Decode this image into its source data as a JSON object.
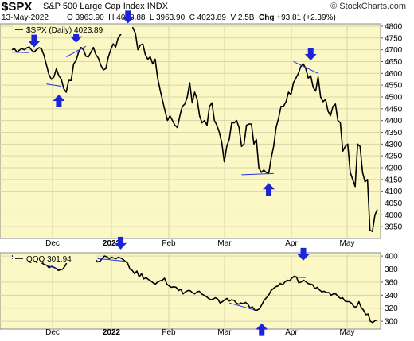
{
  "header": {
    "symbol": "$SPX",
    "name": "S&P 500 Large Cap Index",
    "exchange": "INDX",
    "brand": "© StockCharts.com",
    "date": "13-May-2022",
    "open_label": "O",
    "open": "3963.90",
    "high_label": "H",
    "high": "4038.88",
    "low_label": "L",
    "low": "3963.90",
    "close_label": "C",
    "close": "4023.89",
    "volume_label": "V",
    "volume": "2.5B",
    "change_label": "Chg",
    "change": "+93.81 (+2.39%)"
  },
  "colors": {
    "plot_bg": "#fbf8c6",
    "grid": "#d8d6a8",
    "line": "#000000",
    "arrow": "#1d24d8",
    "trend": "#2233dd"
  },
  "chart_data": [
    {
      "type": "line",
      "legend": "$SPX (Daily) 4023.89",
      "x_ticks": [
        "Dec",
        "2022",
        "Feb",
        "Mar",
        "Apr",
        "May"
      ],
      "ylim": [
        3900,
        4810
      ],
      "y_ticks": [
        3950,
        4000,
        4050,
        4100,
        4150,
        4200,
        4250,
        4300,
        4350,
        4400,
        4450,
        4500,
        4550,
        4600,
        4650,
        4700,
        4750,
        4800
      ],
      "y_tick_labels": [
        "3950",
        "4000",
        "4050",
        "4100",
        "4150",
        "4200",
        "4250",
        "4300",
        "4350",
        "4400",
        "4450",
        "4500",
        "4550",
        "4600",
        "4650",
        "4700",
        "4750",
        "4800"
      ],
      "grid": true,
      "values": [
        4700,
        4705,
        4690,
        4698,
        4705,
        4700,
        4708,
        4712,
        4698,
        4690,
        4701,
        4709,
        4704,
        4676,
        4635,
        4595,
        4575,
        4585,
        4620,
        4590,
        4575,
        4535,
        4520,
        4570,
        4570,
        4640,
        4655,
        4690,
        4710,
        4700,
        4672,
        4670,
        4690,
        4710,
        4680,
        4665,
        4635,
        4615,
        4620,
        4668,
        4700,
        4725,
        4712,
        4750,
        4765,
        4778,
        4790,
        4780,
        4796,
        4793,
        4770,
        4700,
        4720,
        4725,
        4680,
        4660,
        4670,
        4640,
        4660,
        4580,
        4530,
        4485,
        4440,
        4400,
        4420,
        4400,
        4380,
        4370,
        4420,
        4460,
        4470,
        4500,
        4560,
        4475,
        4520,
        4490,
        4420,
        4390,
        4400,
        4380,
        4460,
        4475,
        4400,
        4380,
        4350,
        4305,
        4225,
        4290,
        4320,
        4390,
        4390,
        4400,
        4370,
        4290,
        4300,
        4380,
        4385,
        4385,
        4300,
        4320,
        4200,
        4180,
        4190,
        4180,
        4175,
        4240,
        4290,
        4370,
        4410,
        4460,
        4460,
        4480,
        4520,
        4510,
        4560,
        4580,
        4600,
        4630,
        4640,
        4620,
        4580,
        4590,
        4540,
        4525,
        4585,
        4500,
        4480,
        4490,
        4440,
        4420,
        4460,
        4470,
        4400,
        4390,
        4270,
        4290,
        4300,
        4180,
        4150,
        4120,
        4300,
        4290,
        4180,
        4140,
        4150,
        3935,
        3930,
        3999,
        4023
      ],
      "annotations": [
        {
          "kind": "arrow-down",
          "i": 9,
          "v": 4710
        },
        {
          "kind": "arrow-up",
          "i": 19,
          "v": 4510
        },
        {
          "kind": "arrow-down",
          "i": 26,
          "v": 4730
        },
        {
          "kind": "arrow-down",
          "i": 47,
          "v": 4812
        },
        {
          "kind": "arrow-down",
          "i": 121,
          "v": 4655
        },
        {
          "kind": "arrow-up",
          "i": 104,
          "v": 4135
        }
      ],
      "trendlines": [
        {
          "i0": 0,
          "v0": 4690,
          "i1": 7,
          "v1": 4688
        },
        {
          "i0": 14,
          "v0": 4555,
          "i1": 20,
          "v1": 4545
        },
        {
          "i0": 22,
          "v0": 4670,
          "i1": 30,
          "v1": 4715
        },
        {
          "i0": 37,
          "v0": 4770,
          "i1": 48,
          "v1": 4788
        },
        {
          "i0": 93,
          "v0": 4170,
          "i1": 106,
          "v1": 4175
        },
        {
          "i0": 114,
          "v0": 4650,
          "i1": 124,
          "v1": 4600
        }
      ]
    },
    {
      "type": "line",
      "legend": "QQQ 301.94",
      "x_ticks": [
        "Dec",
        "2022",
        "Feb",
        "Mar",
        "Apr",
        "May"
      ],
      "ylim": [
        288,
        405
      ],
      "y_ticks": [
        300,
        320,
        340,
        360,
        380,
        400
      ],
      "y_tick_labels": [
        "300",
        "320",
        "340",
        "360",
        "380",
        "400"
      ],
      "grid": true,
      "values": [
        400,
        400,
        399,
        398,
        398,
        397,
        398,
        396,
        391,
        394,
        393,
        392,
        394,
        389,
        387,
        386,
        382,
        384,
        383,
        381,
        378,
        379,
        380,
        385,
        392,
        394,
        396,
        399,
        398,
        396,
        394,
        396,
        396,
        397,
        397,
        398,
        395,
        391,
        392,
        396,
        400,
        399,
        396,
        398,
        397,
        396,
        398,
        397,
        395,
        392,
        389,
        380,
        378,
        373,
        377,
        368,
        373,
        365,
        367,
        364,
        362,
        359,
        357,
        360,
        362,
        363,
        366,
        357,
        354,
        352,
        353,
        352,
        347,
        349,
        342,
        345,
        347,
        347,
        344,
        342,
        345,
        346,
        342,
        340,
        338,
        335,
        333,
        334,
        336,
        334,
        328,
        330,
        333,
        335,
        331,
        333,
        332,
        328,
        326,
        328,
        327,
        329,
        326,
        320,
        322,
        317,
        317,
        319,
        325,
        332,
        336,
        340,
        347,
        350,
        353,
        354,
        358,
        356,
        360,
        363,
        362,
        366,
        369,
        368,
        359,
        360,
        363,
        361,
        358,
        357,
        356,
        350,
        352,
        348,
        345,
        346,
        344,
        344,
        340,
        342,
        342,
        338,
        335,
        336,
        331,
        330,
        330,
        327,
        322,
        322,
        330,
        321,
        317,
        310,
        311,
        300,
        298,
        301,
        302
      ],
      "annotations": [
        {
          "kind": "arrow-down",
          "i": 47,
          "v": 410
        },
        {
          "kind": "arrow-down",
          "i": 126,
          "v": 393
        },
        {
          "kind": "arrow-up",
          "i": 108,
          "v": 297
        }
      ],
      "trendlines": [
        {
          "i0": 0,
          "v0": 396,
          "i1": 8,
          "v1": 394
        },
        {
          "i0": 14,
          "v0": 387,
          "i1": 19,
          "v1": 381
        },
        {
          "i0": 37,
          "v0": 396,
          "i1": 49,
          "v1": 392
        },
        {
          "i0": 94,
          "v0": 328,
          "i1": 105,
          "v1": 317
        },
        {
          "i0": 117,
          "v0": 368,
          "i1": 127,
          "v1": 367
        }
      ]
    }
  ]
}
